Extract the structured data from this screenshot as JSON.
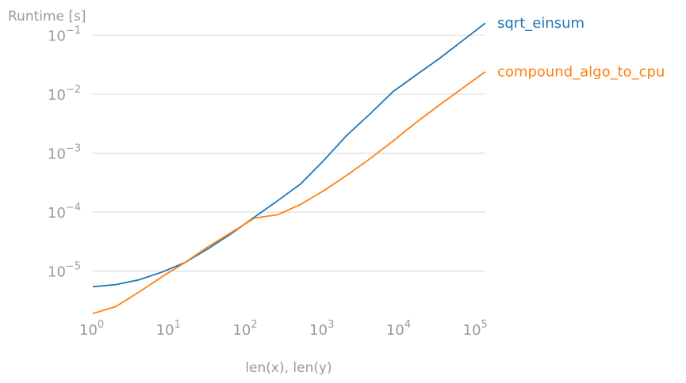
{
  "chart_data": {
    "type": "line",
    "title": "",
    "ylabel": "Runtime [s]",
    "xlabel": "len(x), len(y)",
    "xscale": "log",
    "yscale": "log",
    "xlim": [
      1,
      131072
    ],
    "ylim": [
      1.8e-06,
      0.2
    ],
    "grid": "horizontal",
    "legend": "inline-right",
    "x_ticks": [
      {
        "base": "10",
        "exp": "0",
        "value": 1
      },
      {
        "base": "10",
        "exp": "1",
        "value": 10
      },
      {
        "base": "10",
        "exp": "2",
        "value": 100
      },
      {
        "base": "10",
        "exp": "3",
        "value": 1000
      },
      {
        "base": "10",
        "exp": "4",
        "value": 10000
      },
      {
        "base": "10",
        "exp": "5",
        "value": 100000
      }
    ],
    "y_ticks": [
      {
        "base": "10",
        "exp": "−5",
        "value": 1e-05
      },
      {
        "base": "10",
        "exp": "−4",
        "value": 0.0001
      },
      {
        "base": "10",
        "exp": "−3",
        "value": 0.001
      },
      {
        "base": "10",
        "exp": "−2",
        "value": 0.01
      },
      {
        "base": "10",
        "exp": "−1",
        "value": 0.1
      }
    ],
    "x": [
      1,
      2,
      4,
      8,
      16,
      32,
      64,
      128,
      256,
      512,
      1024,
      2048,
      4096,
      8192,
      16384,
      32768,
      65536,
      131072
    ],
    "series": [
      {
        "name": "sqrt_einsum",
        "color": "#1f77b4",
        "values": [
          5.4e-06,
          5.9e-06,
          7.1e-06,
          9.6e-06,
          1.4e-05,
          2.4e-05,
          4.3e-05,
          8.2e-05,
          0.000155,
          0.0003,
          0.00075,
          0.002,
          0.0046,
          0.011,
          0.021,
          0.04,
          0.08,
          0.16
        ]
      },
      {
        "name": "compound_algo_to_cpu",
        "color": "#ff7f0e",
        "values": [
          1.9e-06,
          2.5e-06,
          4.4e-06,
          8e-06,
          1.4e-05,
          2.6e-05,
          4.5e-05,
          7.9e-05,
          9e-05,
          0.000135,
          0.00023,
          0.00042,
          0.0008,
          0.0016,
          0.0033,
          0.0065,
          0.0125,
          0.024
        ]
      }
    ]
  }
}
